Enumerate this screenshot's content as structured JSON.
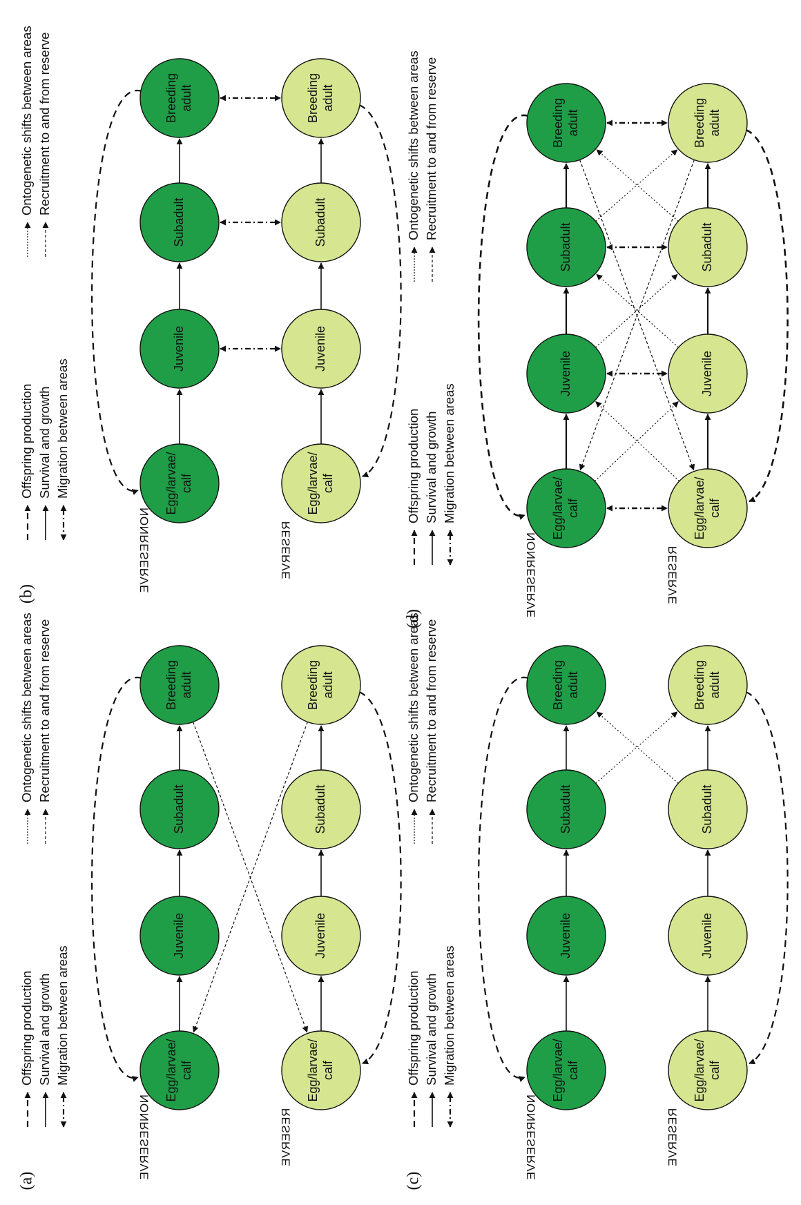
{
  "figure": {
    "node_colors": {
      "nonreserve": "#1f9e47",
      "reserve": "#d5e590"
    },
    "stage_labels": [
      [
        "Egg/larvae/",
        "calf"
      ],
      [
        "Juvenile"
      ],
      [
        "Subadult"
      ],
      [
        "Breeding",
        "adult"
      ]
    ],
    "row_labels": {
      "nonreserve": "NONRESERVE",
      "reserve": "RESERVE"
    },
    "legend": {
      "offspring": "Offspring production",
      "survival": "Survival and growth",
      "migration": "Migration between areas",
      "ontogenetic": "Ontogenetic shifts between areas",
      "recruitment": "Recruitment to and from reserve"
    },
    "panels": [
      {
        "label": "(a)",
        "id": "a"
      },
      {
        "label": "(b)",
        "id": "b"
      },
      {
        "label": "(c)",
        "id": "c"
      },
      {
        "label": "(d)",
        "id": "d"
      }
    ]
  }
}
